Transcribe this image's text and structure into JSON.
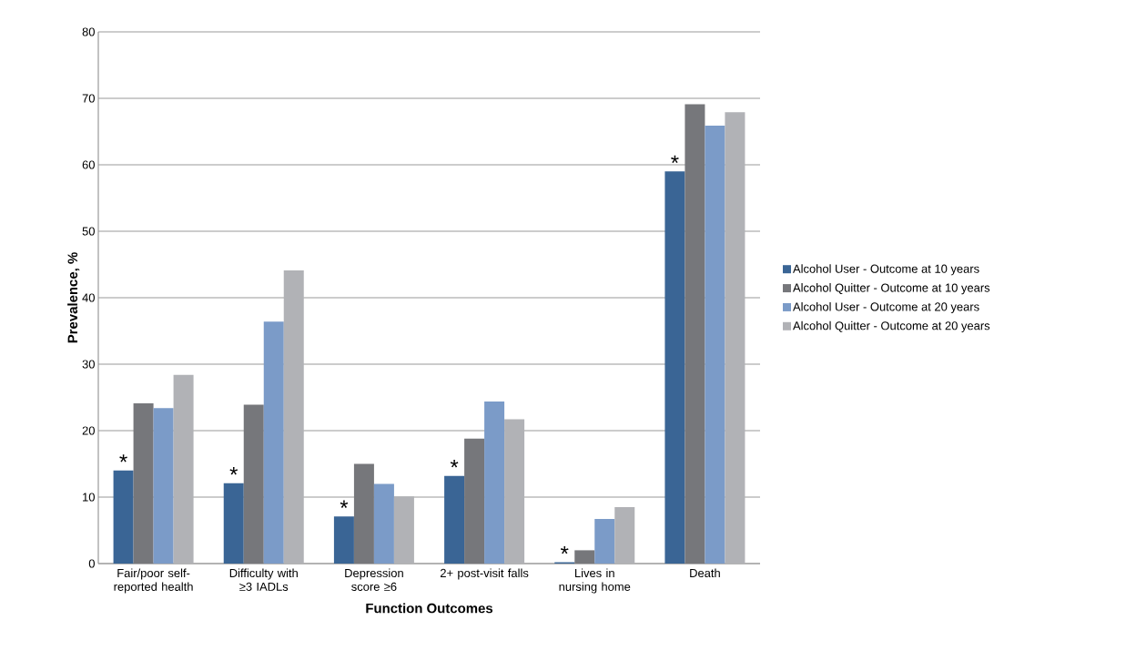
{
  "chart_data": {
    "type": "bar",
    "xlabel": "Function Outcomes",
    "ylabel": "Prevalence, %",
    "categories": [
      "Fair/poor self-reported health",
      "Difficulty with ≥3 IADLs",
      "Depression score ≥6",
      "2+ post-visit falls",
      "Lives in nursing home",
      "Death"
    ],
    "series": [
      {
        "name": "Alcohol User - Outcome at 10 years",
        "color": "#3a6595",
        "values": [
          14.0,
          12.1,
          7.1,
          13.2,
          0.2,
          59.0
        ]
      },
      {
        "name": "Alcohol Quitter - Outcome at 10 years",
        "color": "#76777b",
        "values": [
          24.1,
          23.9,
          15.0,
          18.8,
          2.0,
          69.1
        ]
      },
      {
        "name": "Alcohol User - Outcome at 20 years",
        "color": "#7b9bc8",
        "values": [
          23.4,
          36.4,
          12.0,
          24.4,
          6.7,
          65.9
        ]
      },
      {
        "name": "Alcohol Quitter - Outcome at 20 years",
        "color": "#b1b2b6",
        "values": [
          28.4,
          44.1,
          10.1,
          21.7,
          8.5,
          67.9
        ]
      }
    ],
    "ylim": [
      0,
      80
    ],
    "yticks": [
      0,
      10,
      20,
      30,
      40,
      50,
      60,
      70,
      80
    ],
    "grid": "y",
    "legend": "right",
    "annotations": [
      {
        "text": "*",
        "x": "Fair/poor self-reported health",
        "y": 14.0
      },
      {
        "text": "*",
        "x": "Difficulty with ≥3 IADLs",
        "y": 12.1
      },
      {
        "text": "*",
        "x": "Depression score ≥6",
        "y": 7.1
      },
      {
        "text": "*",
        "x": "2+ post-visit falls",
        "y": 13.2
      },
      {
        "text": "*",
        "x": "Lives in nursing home",
        "y": 0.2
      },
      {
        "text": "*",
        "x": "Death",
        "y": 59.0
      }
    ]
  }
}
